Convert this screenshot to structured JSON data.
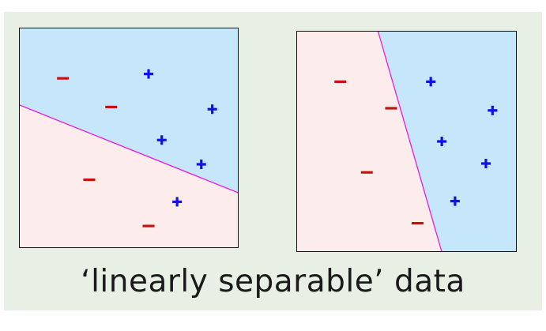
{
  "caption": "‘linearly separable’ data",
  "colors": {
    "panel_background": "#e8f0e6",
    "positive_region": "#c5e6fb",
    "negative_region": "#fdecec",
    "boundary_line": "#e020e0",
    "plus_marker": "#1010e8",
    "minus_marker": "#c81010",
    "frame": "#111111"
  },
  "chart_data": [
    {
      "type": "scatter",
      "title": "",
      "xlabel": "",
      "ylabel": "",
      "xlim": [
        0,
        10
      ],
      "ylim": [
        0,
        10
      ],
      "boundary": {
        "from": [
          0,
          6.5
        ],
        "to": [
          10,
          2.5
        ]
      },
      "series": [
        {
          "marker": "plus",
          "points": [
            [
              5.9,
              7.9
            ],
            [
              8.8,
              6.3
            ],
            [
              6.5,
              4.9
            ],
            [
              8.3,
              3.8
            ],
            [
              7.2,
              2.1
            ]
          ]
        },
        {
          "marker": "minus",
          "points": [
            [
              2.0,
              7.7
            ],
            [
              4.2,
              6.4
            ],
            [
              3.2,
              3.1
            ],
            [
              5.9,
              1.0
            ]
          ]
        }
      ]
    },
    {
      "type": "scatter",
      "title": "",
      "xlabel": "",
      "ylabel": "",
      "xlim": [
        0,
        10
      ],
      "ylim": [
        0,
        10
      ],
      "boundary": {
        "from": [
          3.7,
          10
        ],
        "to": [
          6.6,
          0
        ]
      },
      "series": [
        {
          "marker": "plus",
          "points": [
            [
              6.1,
              7.7
            ],
            [
              8.9,
              6.4
            ],
            [
              6.6,
              5.0
            ],
            [
              8.6,
              4.0
            ],
            [
              7.2,
              2.3
            ]
          ]
        },
        {
          "marker": "minus",
          "points": [
            [
              2.0,
              7.7
            ],
            [
              4.3,
              6.5
            ],
            [
              3.2,
              3.6
            ],
            [
              5.5,
              1.3
            ]
          ]
        }
      ]
    }
  ]
}
